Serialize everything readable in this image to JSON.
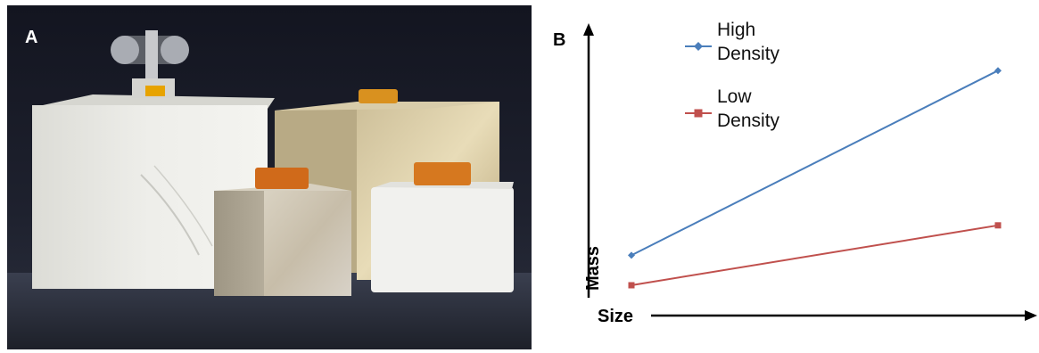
{
  "panel_a": {
    "letter": "A"
  },
  "panel_b": {
    "letter": "B"
  },
  "chart_data": {
    "type": "line",
    "title": "",
    "xlabel": "Size",
    "ylabel": "Mass",
    "x": [
      1,
      2
    ],
    "xlim": [
      1,
      2
    ],
    "ylim": [
      0,
      10
    ],
    "grid": false,
    "axis_ticks": false,
    "legend_position": "top-left",
    "series": [
      {
        "name": "High Density",
        "legend_lines": [
          "High",
          "Density"
        ],
        "values": [
          1.2,
          8.6
        ],
        "color": "#4a7ebb",
        "marker": "diamond"
      },
      {
        "name": "Low Density",
        "legend_lines": [
          "Low",
          "Density"
        ],
        "values": [
          0.0,
          2.4
        ],
        "color": "#c0504d",
        "marker": "square"
      }
    ]
  }
}
